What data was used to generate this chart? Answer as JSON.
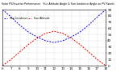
{
  "title": "Solar PV/Inverter Performance   Sun Altitude Angle & Sun Incidence Angle on PV Panels",
  "x_values": [
    6,
    7,
    8,
    9,
    10,
    11,
    12,
    13,
    14,
    15,
    16,
    17,
    18
  ],
  "altitude_angle": [
    0,
    10,
    22,
    34,
    44,
    52,
    55,
    52,
    44,
    34,
    22,
    10,
    0
  ],
  "incidence_angle": [
    90,
    78,
    65,
    54,
    46,
    40,
    37,
    40,
    46,
    54,
    65,
    78,
    90
  ],
  "altitude_color": "#dd0000",
  "incidence_color": "#0000dd",
  "ylim": [
    0,
    90
  ],
  "xlim": [
    6,
    18
  ],
  "ytick_values": [
    0,
    10,
    20,
    30,
    40,
    50,
    60,
    70,
    80,
    90
  ],
  "background_color": "#ffffff",
  "grid_color": "#aaaaaa",
  "legend_altitude": "Sun Altitude",
  "legend_incidence": "Sun Incidence"
}
